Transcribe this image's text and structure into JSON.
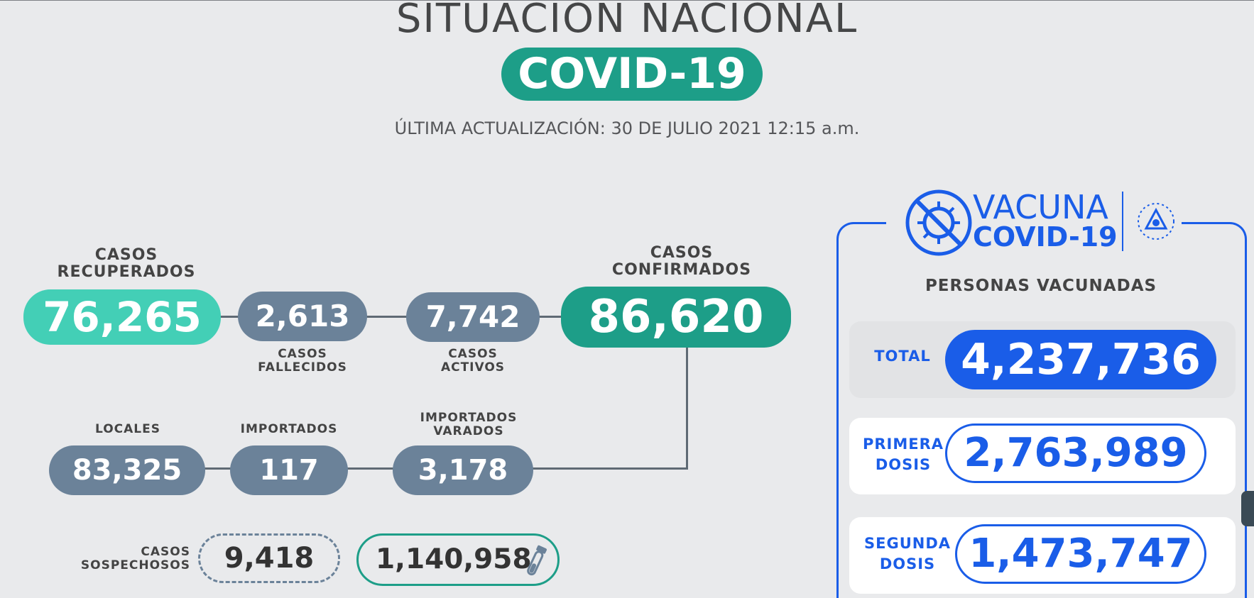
{
  "header": {
    "title": "SITUACIÓN NACIONAL",
    "badge": "COVID-19",
    "updated": "ÚLTIMA ACTUALIZACIÓN: 30 DE JULIO 2021 12:15 a.m."
  },
  "stats": {
    "recovered": {
      "label_line1": "CASOS",
      "label_line2": "RECUPERADOS",
      "value": "76,265"
    },
    "deceased": {
      "label_line1": "CASOS",
      "label_line2": "FALLECIDOS",
      "value": "2,613"
    },
    "active": {
      "label_line1": "CASOS",
      "label_line2": "ACTIVOS",
      "value": "7,742"
    },
    "confirmed": {
      "label_line1": "CASOS",
      "label_line2": "CONFIRMADOS",
      "value": "86,620"
    },
    "local": {
      "label": "LOCALES",
      "value": "83,325"
    },
    "imported": {
      "label": "IMPORTADOS",
      "value": "117"
    },
    "stranded": {
      "label_line1": "IMPORTADOS",
      "label_line2": "VARADOS",
      "value": "3,178"
    },
    "suspected": {
      "label_line1": "CASOS",
      "label_line2": "SOSPECHOSOS",
      "value": "9,418"
    },
    "tests": {
      "value": "1,140,958",
      "icon": "test-tube-icon"
    }
  },
  "vaccine": {
    "logo_word1": "VACUNA",
    "logo_word2": "COVID-19",
    "heading": "PERSONAS VACUNADAS",
    "total": {
      "label": "TOTAL",
      "value": "4,237,736"
    },
    "first": {
      "label_line1": "PRIMERA",
      "label_line2": "DOSIS",
      "value": "2,763,989"
    },
    "second": {
      "label_line1": "SEGUNDA",
      "label_line2": "DOSIS",
      "value": "1,473,747"
    }
  },
  "colors": {
    "teal": "#1d9e88",
    "teal_light": "#43cfb6",
    "slate": "#6b8299",
    "blue": "#1a5de8",
    "background": "#e9eaec"
  }
}
